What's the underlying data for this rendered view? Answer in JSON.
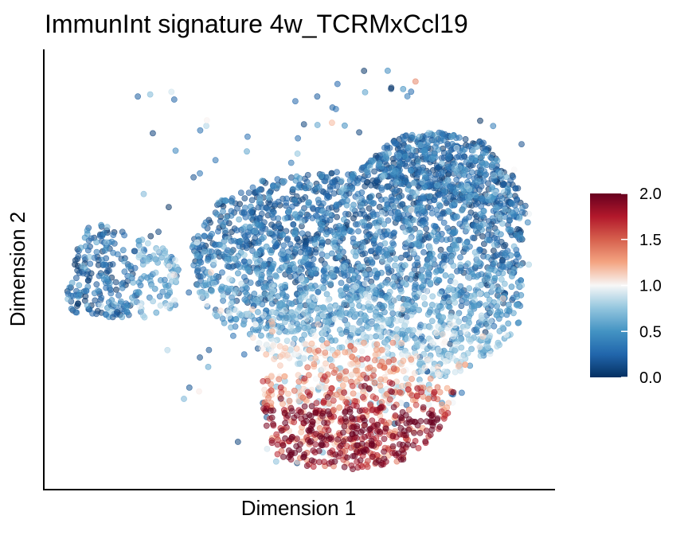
{
  "chart_data": {
    "type": "scatter",
    "title": "ImmunInt signature 4w_TCRMxCcl19",
    "xlabel": "Dimension 1",
    "ylabel": "Dimension 2",
    "axes_ticks": "none",
    "grid": false,
    "color_scale": {
      "name": "RdBu (reversed)",
      "range": [
        0.0,
        2.0
      ],
      "ticks": [
        "0.0",
        "0.5",
        "1.0",
        "1.5",
        "2.0"
      ],
      "stops": [
        "#053061",
        "#2166ac",
        "#4393c3",
        "#92c5de",
        "#f7f7f7",
        "#f4a582",
        "#d6604d",
        "#b2182b",
        "#67001f"
      ]
    },
    "legend_position": "right",
    "point_opacity": 0.55,
    "clusters": [
      {
        "id": "left-cluster",
        "approx_cells": 300,
        "mean_value": 0.25
      },
      {
        "id": "main-body",
        "approx_cells": 2600,
        "mean_value": 0.2
      },
      {
        "id": "upper-right-lobe",
        "approx_cells": 500,
        "mean_value": 0.15
      },
      {
        "id": "bottom-lobe",
        "approx_cells": 700,
        "mean_value": 1.75
      },
      {
        "id": "sparse-outliers",
        "approx_cells": 80,
        "mean_value": 0.2
      }
    ]
  }
}
